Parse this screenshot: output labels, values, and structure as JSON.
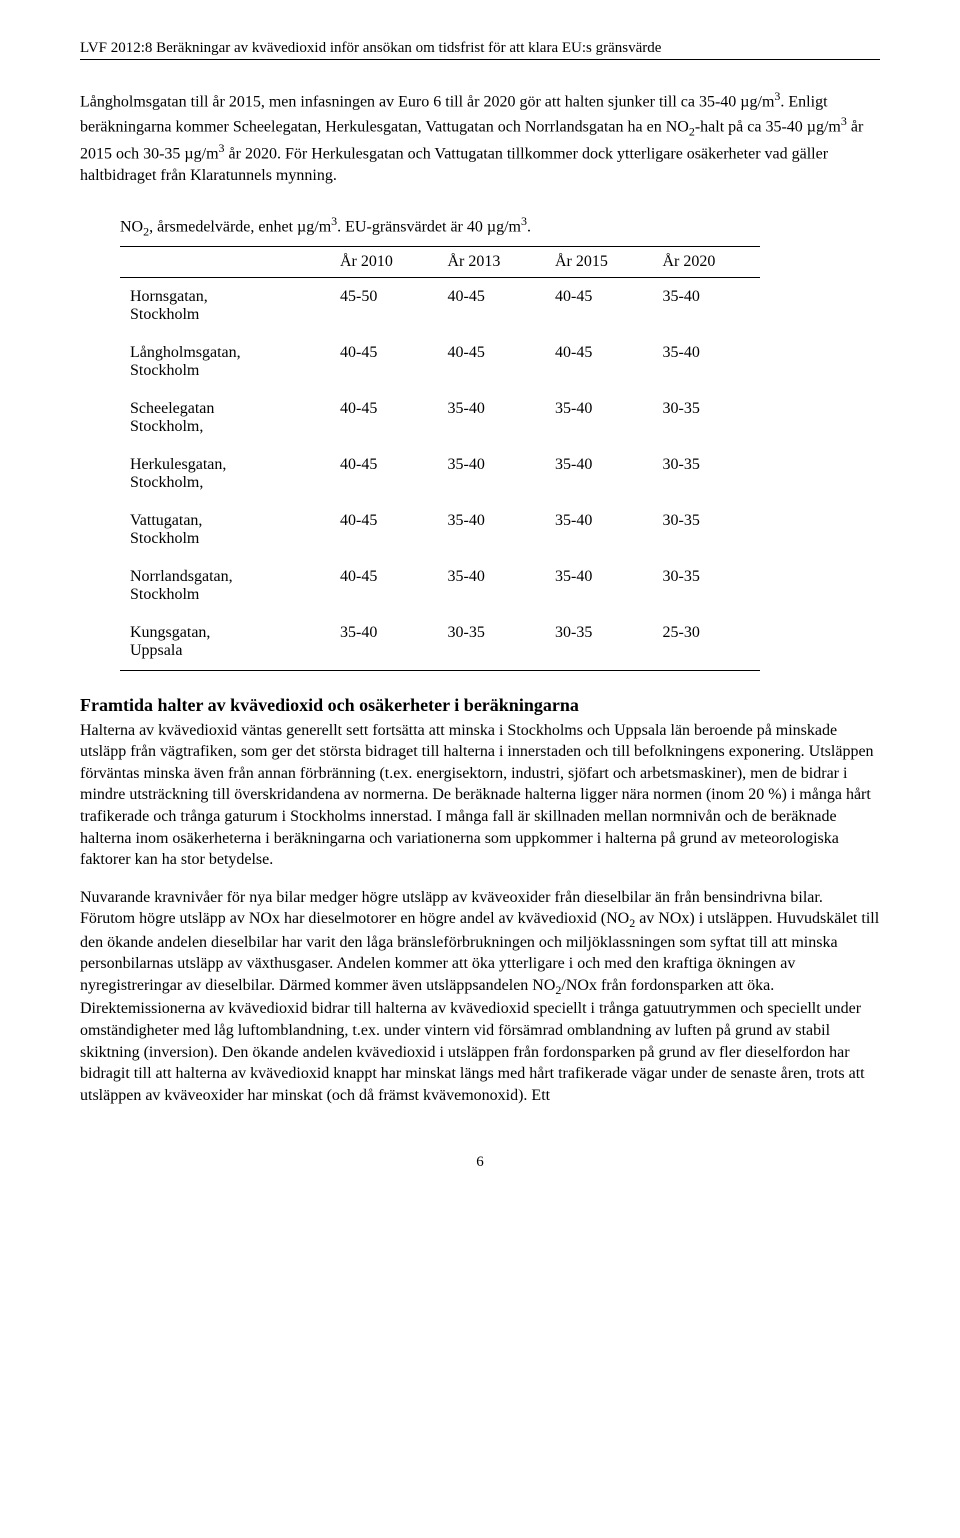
{
  "header": "LVF 2012:8 Beräkningar av kvävedioxid inför ansökan om tidsfrist för att klara EU:s gränsvärde",
  "intro": {
    "p1_a": "Långholmsgatan till år 2015, men infasningen av Euro 6 till år 2020 gör att halten sjunker till ca 35-40 µg/m",
    "p1_b": ". Enligt beräkningarna kommer Scheelegatan, Herkulesgatan, Vattugatan och Norrlandsgatan ha en NO",
    "p1_c": "-halt på ca 35-40 µg/m",
    "p1_d": " år 2015 och 30-35 µg/m",
    "p1_e": " år 2020. För Herkulesgatan och Vattugatan tillkommer dock ytterligare osäkerheter vad gäller haltbidraget från Klaratunnels mynning."
  },
  "table": {
    "caption_a": "NO",
    "caption_b": ", årsmedelvärde, enhet µg/m",
    "caption_c": ". EU-gränsvärdet är 40 µg/m",
    "caption_d": ".",
    "columns": [
      "",
      "År 2010",
      "År 2013",
      "År 2015",
      "År 2020"
    ],
    "rows": [
      {
        "label": "Hornsgatan, Stockholm",
        "values": [
          "45-50",
          "40-45",
          "40-45",
          "35-40"
        ]
      },
      {
        "label": "Långholmsgatan, Stockholm",
        "values": [
          "40-45",
          "40-45",
          "40-45",
          "35-40"
        ]
      },
      {
        "label": "Scheelegatan Stockholm,",
        "values": [
          "40-45",
          "35-40",
          "35-40",
          "30-35"
        ]
      },
      {
        "label": "Herkulesgatan, Stockholm,",
        "values": [
          "40-45",
          "35-40",
          "35-40",
          "30-35"
        ]
      },
      {
        "label": "Vattugatan, Stockholm",
        "values": [
          "40-45",
          "35-40",
          "35-40",
          "30-35"
        ]
      },
      {
        "label": "Norrlandsgatan, Stockholm",
        "values": [
          "40-45",
          "35-40",
          "35-40",
          "30-35"
        ]
      },
      {
        "label": "Kungsgatan, Uppsala",
        "values": [
          "35-40",
          "30-35",
          "30-35",
          "25-30"
        ]
      }
    ]
  },
  "section": {
    "title": "Framtida halter av kvävedioxid och osäkerheter i beräkningarna",
    "p1": "Halterna av kvävedioxid väntas generellt sett fortsätta att minska i Stockholms och Uppsala län beroende på minskade utsläpp från vägtrafiken, som ger det största bidraget till halterna i innerstaden och till befolkningens exponering. Utsläppen förväntas minska även från annan förbränning (t.ex. energisektorn, industri, sjöfart och arbetsmaskiner), men de bidrar i mindre utsträckning till överskridandena av normerna. De beräknade halterna ligger nära normen (inom 20 %) i många hårt trafikerade och trånga gaturum i Stockholms innerstad. I många fall är skillnaden mellan normnivån och de beräknade halterna inom osäkerheterna i beräkningarna och variationerna som uppkommer i halterna på grund av meteorologiska faktorer kan ha stor betydelse.",
    "p2_a": "Nuvarande kravnivåer för nya bilar medger högre utsläpp av kväveoxider från dieselbilar än från bensindrivna bilar. Förutom högre utsläpp av NOx har dieselmotorer en högre andel av kvävedioxid (NO",
    "p2_b": " av NOx) i utsläppen. Huvudskälet till den ökande andelen dieselbilar har varit den låga bränsleförbrukningen och miljöklassningen som syftat till att minska personbilarnas utsläpp av växthusgaser. Andelen kommer att öka ytterligare i och med den kraftiga ökningen av nyregistreringar av dieselbilar. Därmed kommer även utsläppsandelen NO",
    "p2_c": "/NOx från fordonsparken att öka. Direktemissionerna av kvävedioxid bidrar till halterna av kvävedioxid speciellt i trånga gatuutrymmen och speciellt under omständigheter med låg luftomblandning, t.ex. under vintern vid försämrad omblandning av luften på grund av stabil skiktning (inversion). Den ökande andelen kvävedioxid i utsläppen från fordonsparken på grund av fler dieselfordon har bidragit till att halterna av kvävedioxid knappt har minskat längs med hårt trafikerade vägar under de senaste åren, trots att utsläppen av kväveoxider har minskat (och då främst kvävemonoxid). Ett"
  },
  "page_number": "6"
}
